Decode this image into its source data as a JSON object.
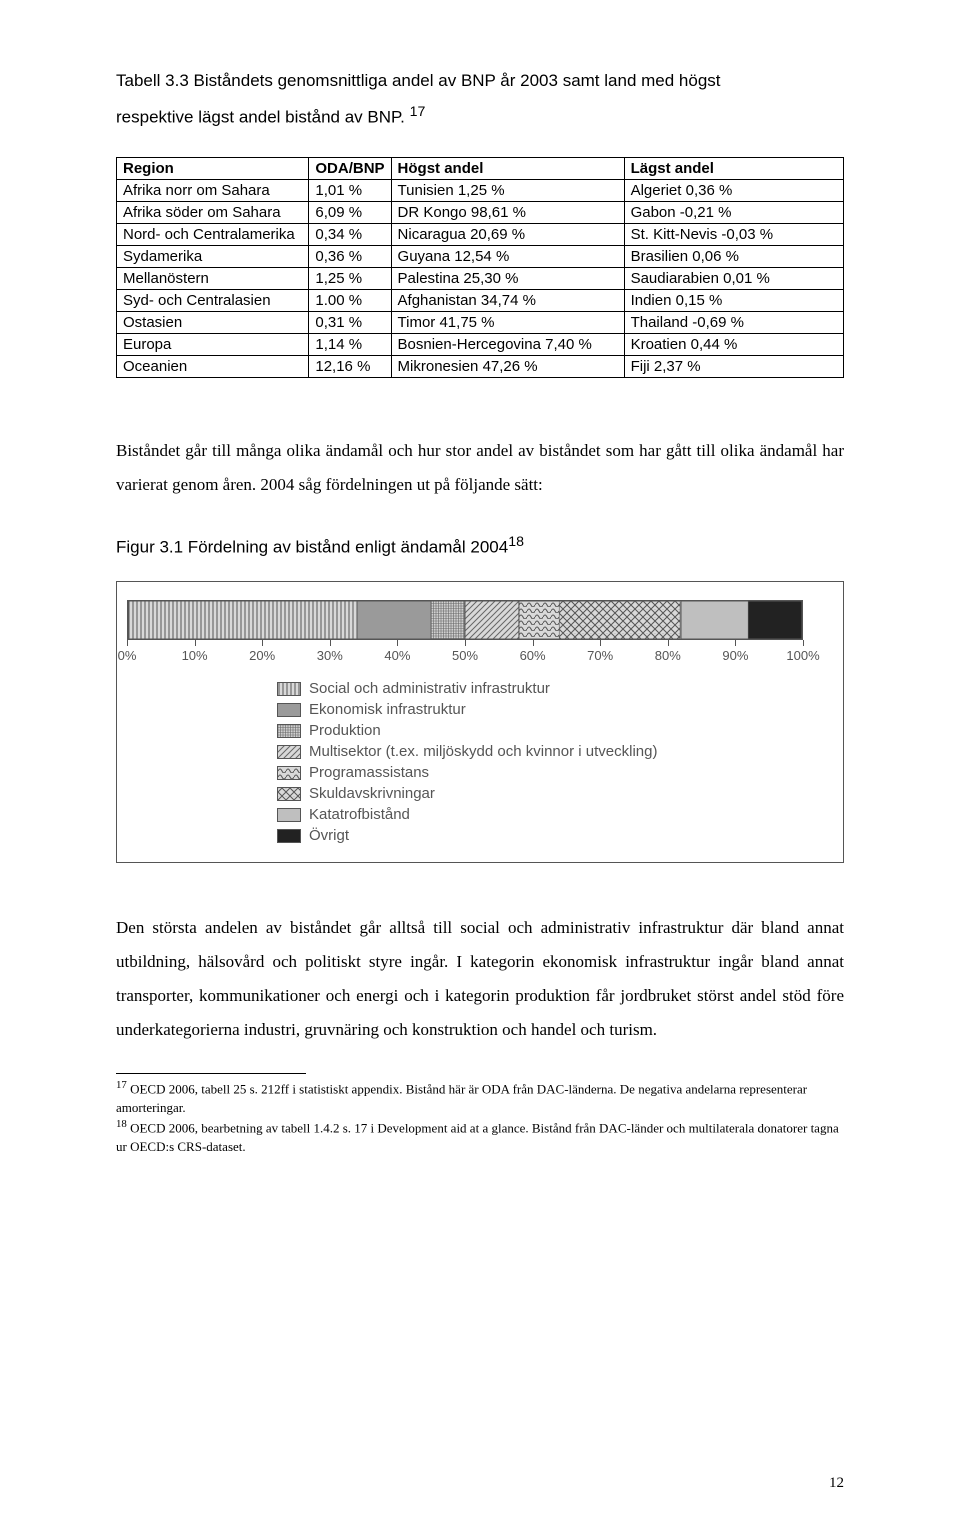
{
  "tableTitle": {
    "line1": "Tabell 3.3 Biståndets genomsnittliga andel av BNP år 2003 samt land med högst",
    "line2": "respektive lägst andel bistånd av BNP.",
    "supRef": "17"
  },
  "table": {
    "headers": [
      "Region",
      "ODA/BNP",
      "Högst andel",
      "Lägst andel"
    ],
    "rows": [
      [
        "Afrika norr om Sahara",
        "1,01 %",
        "Tunisien 1,25 %",
        "Algeriet 0,36 %"
      ],
      [
        "Afrika söder om Sahara",
        "6,09 %",
        "DR Kongo 98,61 %",
        "Gabon -0,21 %"
      ],
      [
        "Nord- och Centralamerika",
        "0,34 %",
        "Nicaragua 20,69 %",
        "St. Kitt-Nevis -0,03 %"
      ],
      [
        "Sydamerika",
        "0,36 %",
        "Guyana 12,54 %",
        "Brasilien 0,06 %"
      ],
      [
        "Mellanöstern",
        "1,25 %",
        "Palestina 25,30 %",
        "Saudiarabien 0,01 %"
      ],
      [
        "Syd- och Centralasien",
        "1.00 %",
        "Afghanistan 34,74 %",
        "Indien 0,15 %"
      ],
      [
        "Ostasien",
        "0,31 %",
        "Timor 41,75 %",
        "Thailand -0,69 %"
      ],
      [
        "Europa",
        "1,14 %",
        "Bosnien-Hercegovina 7,40 %",
        "Kroatien 0,44 %"
      ],
      [
        "Oceanien",
        "12,16 %",
        "Mikronesien 47,26 %",
        "Fiji 2,37 %"
      ]
    ]
  },
  "para1": "Biståndet går till många olika ändamål och hur stor andel av biståndet som har gått till olika ändamål har varierat genom åren. 2004 såg fördelningen ut på följande sätt:",
  "figTitle": {
    "text": "Figur 3.1 Fördelning av bistånd enligt ändamål 2004",
    "supRef": "18"
  },
  "chart": {
    "segments": [
      {
        "label": "Social och administrativ infrastruktur",
        "pct": 34,
        "fill": "vlines"
      },
      {
        "label": "Ekonomisk infrastruktur",
        "pct": 11,
        "fill": "solidgray"
      },
      {
        "label": "Produktion",
        "pct": 5,
        "fill": "crosshatch"
      },
      {
        "label": "Multisektor (t.ex. miljöskydd och kvinnor i utveckling)",
        "pct": 8,
        "fill": "diag"
      },
      {
        "label": "Programassistans",
        "pct": 6,
        "fill": "waves"
      },
      {
        "label": "Skuldavskrivningar",
        "pct": 18,
        "fill": "diamonds"
      },
      {
        "label": "Katatrofbistånd",
        "pct": 10,
        "fill": "midgray"
      },
      {
        "label": "Övrigt",
        "pct": 8,
        "fill": "black"
      }
    ],
    "ticks": [
      0,
      10,
      20,
      30,
      40,
      50,
      60,
      70,
      80,
      90,
      100
    ]
  },
  "para2a": "Den största andelen av biståndet går alltså till social och administrativ infrastruktur där bland annat utbildning, hälsovård och politiskt styre ingår. I kategorin ekonomisk infrastruktur ingår bland annat transporter, kommunikationer och energi och i kategorin produktion får jordbruket störst andel stöd före underkategorierna industri, gruvnäring och konstruktion och handel och turism.",
  "fn17": "OECD 2006, tabell 25 s. 212ff i statistiskt appendix. Bistånd här är ODA från DAC-länderna. De negativa andelarna representerar amorteringar.",
  "fn18": "OECD 2006, bearbetning av tabell 1.4.2 s. 17 i Development aid at a glance. Bistånd från DAC-länder och multilaterala donatorer tagna ur OECD:s CRS-dataset.",
  "pageNumber": "12"
}
